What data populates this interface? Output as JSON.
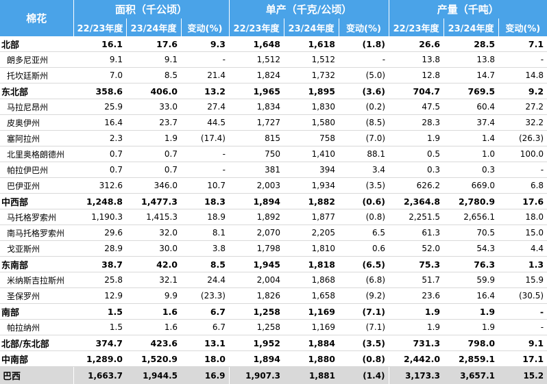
{
  "header": {
    "corner": "棉花",
    "groups": [
      "面积（千公顷）",
      "单产（千克/公顷）",
      "产量（千吨）"
    ],
    "sub": [
      "22/23年度",
      "23/24年度",
      "变动(%)"
    ]
  },
  "rows": [
    {
      "type": "region",
      "name": "北部",
      "v": [
        "16.1",
        "17.6",
        "9.3",
        "1,648",
        "1,618",
        "(1.8)",
        "26.6",
        "28.5",
        "7.1"
      ]
    },
    {
      "type": "state",
      "name": "朗多尼亚州",
      "v": [
        "9.1",
        "9.1",
        "-",
        "1,512",
        "1,512",
        "-",
        "13.8",
        "13.8",
        "-"
      ]
    },
    {
      "type": "state",
      "name": "托坎廷斯州",
      "v": [
        "7.0",
        "8.5",
        "21.4",
        "1,824",
        "1,732",
        "(5.0)",
        "12.8",
        "14.7",
        "14.8"
      ]
    },
    {
      "type": "region",
      "name": "东北部",
      "v": [
        "358.6",
        "406.0",
        "13.2",
        "1,965",
        "1,895",
        "(3.6)",
        "704.7",
        "769.5",
        "9.2"
      ]
    },
    {
      "type": "state",
      "name": "马拉尼昂州",
      "v": [
        "25.9",
        "33.0",
        "27.4",
        "1,834",
        "1,830",
        "(0.2)",
        "47.5",
        "60.4",
        "27.2"
      ]
    },
    {
      "type": "state",
      "name": "皮奥伊州",
      "v": [
        "16.4",
        "23.7",
        "44.5",
        "1,727",
        "1,580",
        "(8.5)",
        "28.3",
        "37.4",
        "32.2"
      ]
    },
    {
      "type": "state",
      "name": "塞阿拉州",
      "v": [
        "2.3",
        "1.9",
        "(17.4)",
        "815",
        "758",
        "(7.0)",
        "1.9",
        "1.4",
        "(26.3)"
      ]
    },
    {
      "type": "state",
      "name": "北里奥格朗德州",
      "v": [
        "0.7",
        "0.7",
        "-",
        "750",
        "1,410",
        "88.1",
        "0.5",
        "1.0",
        "100.0"
      ]
    },
    {
      "type": "state",
      "name": "帕拉伊巴州",
      "v": [
        "0.7",
        "0.7",
        "-",
        "381",
        "394",
        "3.4",
        "0.3",
        "0.3",
        "-"
      ]
    },
    {
      "type": "state",
      "name": "巴伊亚州",
      "v": [
        "312.6",
        "346.0",
        "10.7",
        "2,003",
        "1,934",
        "(3.5)",
        "626.2",
        "669.0",
        "6.8"
      ]
    },
    {
      "type": "region",
      "name": "中西部",
      "v": [
        "1,248.8",
        "1,477.3",
        "18.3",
        "1,894",
        "1,882",
        "(0.6)",
        "2,364.8",
        "2,780.9",
        "17.6"
      ]
    },
    {
      "type": "state",
      "name": "马托格罗索州",
      "v": [
        "1,190.3",
        "1,415.3",
        "18.9",
        "1,892",
        "1,877",
        "(0.8)",
        "2,251.5",
        "2,656.1",
        "18.0"
      ]
    },
    {
      "type": "state",
      "name": "南马托格罗索州",
      "v": [
        "29.6",
        "32.0",
        "8.1",
        "2,070",
        "2,205",
        "6.5",
        "61.3",
        "70.5",
        "15.0"
      ]
    },
    {
      "type": "state",
      "name": "戈亚斯州",
      "v": [
        "28.9",
        "30.0",
        "3.8",
        "1,798",
        "1,810",
        "0.6",
        "52.0",
        "54.3",
        "4.4"
      ]
    },
    {
      "type": "region",
      "name": "东南部",
      "v": [
        "38.7",
        "42.0",
        "8.5",
        "1,945",
        "1,818",
        "(6.5)",
        "75.3",
        "76.3",
        "1.3"
      ]
    },
    {
      "type": "state",
      "name": "米纳斯吉拉斯州",
      "v": [
        "25.8",
        "32.1",
        "24.4",
        "2,004",
        "1,868",
        "(6.8)",
        "51.7",
        "59.9",
        "15.9"
      ]
    },
    {
      "type": "state",
      "name": "圣保罗州",
      "v": [
        "12.9",
        "9.9",
        "(23.3)",
        "1,826",
        "1,658",
        "(9.2)",
        "23.6",
        "16.4",
        "(30.5)"
      ]
    },
    {
      "type": "region",
      "name": "南部",
      "v": [
        "1.5",
        "1.6",
        "6.7",
        "1,258",
        "1,169",
        "(7.1)",
        "1.9",
        "1.9",
        "-"
      ]
    },
    {
      "type": "state",
      "name": "帕拉纳州",
      "v": [
        "1.5",
        "1.6",
        "6.7",
        "1,258",
        "1,169",
        "(7.1)",
        "1.9",
        "1.9",
        "-"
      ]
    },
    {
      "type": "region",
      "name": "北部/东北部",
      "v": [
        "374.7",
        "423.6",
        "13.1",
        "1,952",
        "1,884",
        "(3.5)",
        "731.3",
        "798.0",
        "9.1"
      ]
    },
    {
      "type": "region",
      "name": "中南部",
      "v": [
        "1,289.0",
        "1,520.9",
        "18.0",
        "1,894",
        "1,880",
        "(0.8)",
        "2,442.0",
        "2,859.1",
        "17.1"
      ]
    },
    {
      "type": "total",
      "name": "巴西",
      "v": [
        "1,663.7",
        "1,944.5",
        "16.9",
        "1,907.3",
        "1,881",
        "(1.4)",
        "3,173.3",
        "3,657.1",
        "15.2"
      ]
    }
  ]
}
